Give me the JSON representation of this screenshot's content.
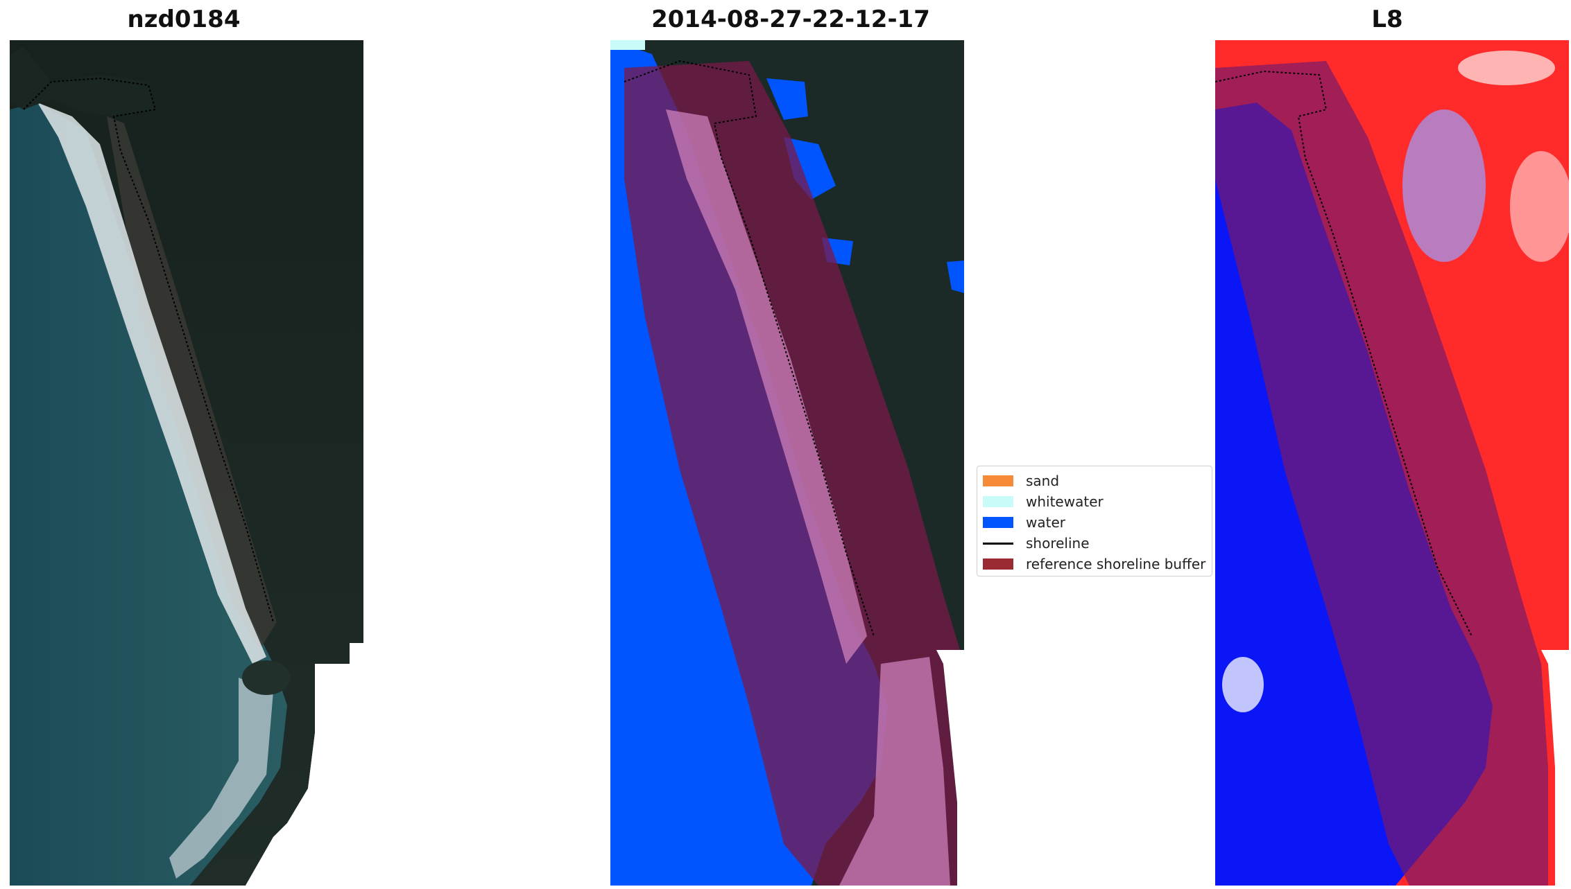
{
  "panels": [
    {
      "title": "nzd0184"
    },
    {
      "title": "2014-08-27-22-12-17"
    },
    {
      "title": "L8"
    }
  ],
  "legend": {
    "items": [
      {
        "label": "sand",
        "color": "#f58a38",
        "kind": "patch"
      },
      {
        "label": "whitewater",
        "color": "#c9fbf8",
        "kind": "patch"
      },
      {
        "label": "water",
        "color": "#0055ff",
        "kind": "patch"
      },
      {
        "label": "shoreline",
        "color": "#000000",
        "kind": "line"
      },
      {
        "label": "reference shoreline buffer",
        "color": "#9a2b33",
        "kind": "patch"
      }
    ]
  },
  "colors": {
    "forest": "#1b2a26",
    "sea": "#1e4a55",
    "surf": "#dfe7ea",
    "water_class": "#0055ff",
    "buffer_overlay": "#7a1a4a",
    "index_positive": "#ff1a1a",
    "index_negative": "#0a16f5"
  }
}
